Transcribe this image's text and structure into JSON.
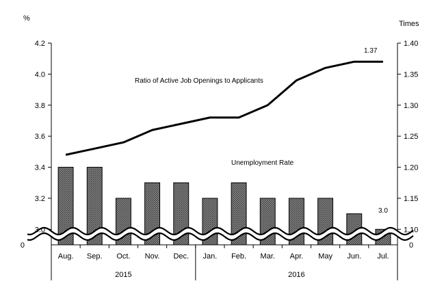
{
  "chart_data": {
    "type": "bar+line",
    "y_left_unit": "%",
    "y_right_unit": "Times",
    "y_left_ticks": [
      "4.2",
      "4.0",
      "3.8",
      "3.6",
      "3.4",
      "3.2",
      "3.0"
    ],
    "y_left_zero": "0",
    "y_right_ticks": [
      "1.40",
      "1.35",
      "1.30",
      "1.25",
      "1.20",
      "1.15",
      "1.10"
    ],
    "y_right_zero": "0",
    "ylim_left": [
      2.9,
      4.2
    ],
    "ylim_right": [
      1.075,
      1.4
    ],
    "categories": [
      "Aug.",
      "Sep.",
      "Oct.",
      "Nov.",
      "Dec.",
      "Jan.",
      "Feb.",
      "Mar.",
      "Apr.",
      "May",
      "Jun.",
      "Jul."
    ],
    "years": [
      {
        "label": "2015",
        "from": 0,
        "to": 4
      },
      {
        "label": "2016",
        "from": 5,
        "to": 11
      }
    ],
    "series": [
      {
        "name": "Unemployment Rate",
        "kind": "bar",
        "axis": "left",
        "values": [
          3.4,
          3.4,
          3.2,
          3.3,
          3.3,
          3.2,
          3.3,
          3.2,
          3.2,
          3.2,
          3.1,
          3.0
        ]
      },
      {
        "name": "Ratio of Active Job Openings to Applicants",
        "kind": "line",
        "axis": "right",
        "values": [
          1.22,
          1.23,
          1.24,
          1.26,
          1.27,
          1.28,
          1.28,
          1.3,
          1.34,
          1.36,
          1.37,
          1.37
        ]
      }
    ],
    "annotations": {
      "line_last_label": "1.37",
      "bar_last_label": "3.0"
    },
    "axis_break": true,
    "grid": false
  }
}
